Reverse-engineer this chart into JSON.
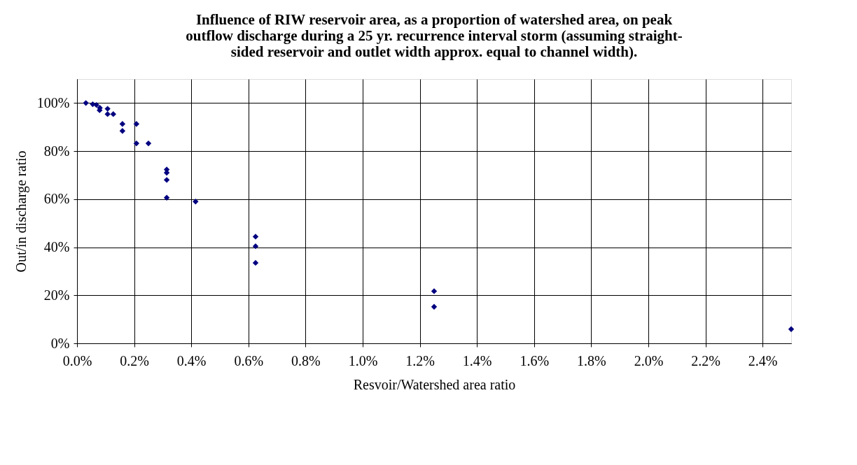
{
  "chart_data": {
    "type": "scatter",
    "title": [
      "Influence of RIW reservoir area, as a proportion of watershed area, on peak",
      "outflow discharge during a 25 yr. recurrence interval storm (assuming straight-",
      "sided reservoir and outlet width approx. equal to channel width)."
    ],
    "xlabel": "Resvoir/Watershed area ratio",
    "ylabel": "Out/in discharge ratio",
    "x": [
      0.031,
      0.055,
      0.068,
      0.08,
      0.079,
      0.107,
      0.107,
      0.127,
      0.159,
      0.159,
      0.208,
      0.208,
      0.25,
      0.314,
      0.314,
      0.314,
      0.314,
      0.415,
      0.625,
      0.625,
      0.625,
      1.25,
      1.25,
      2.5
    ],
    "series": [
      {
        "color": "#000080",
        "values": [
          100,
          99.5,
          99.2,
          98,
          97,
          97.6,
          95.4,
          95.4,
          91.3,
          88.4,
          91.3,
          83.2,
          83.2,
          72.3,
          71,
          68,
          60.6,
          59,
          44.4,
          40.4,
          33.5,
          21.7,
          15.2,
          5.9
        ]
      }
    ],
    "xlim": [
      0,
      2.5
    ],
    "ylim": [
      0,
      110
    ],
    "xticks": [
      {
        "value": 0,
        "label": "0.0%"
      },
      {
        "value": 0.2,
        "label": "0.2%"
      },
      {
        "value": 0.4,
        "label": "0.4%"
      },
      {
        "value": 0.6,
        "label": "0.6%"
      },
      {
        "value": 0.8,
        "label": "0.8%"
      },
      {
        "value": 1.0,
        "label": "1.0%"
      },
      {
        "value": 1.2,
        "label": "1.2%"
      },
      {
        "value": 1.4,
        "label": "1.4%"
      },
      {
        "value": 1.6,
        "label": "1.6%"
      },
      {
        "value": 1.8,
        "label": "1.8%"
      },
      {
        "value": 2.0,
        "label": "2.0%"
      },
      {
        "value": 2.2,
        "label": "2.2%"
      },
      {
        "value": 2.4,
        "label": "2.4%"
      }
    ],
    "yticks": [
      {
        "value": 0,
        "label": "0%"
      },
      {
        "value": 20,
        "label": "20%"
      },
      {
        "value": 40,
        "label": "40%"
      },
      {
        "value": 60,
        "label": "60%"
      },
      {
        "value": 80,
        "label": "80%"
      },
      {
        "value": 100,
        "label": "100%"
      }
    ],
    "grid": true,
    "marker": "diamond",
    "legend": false
  }
}
